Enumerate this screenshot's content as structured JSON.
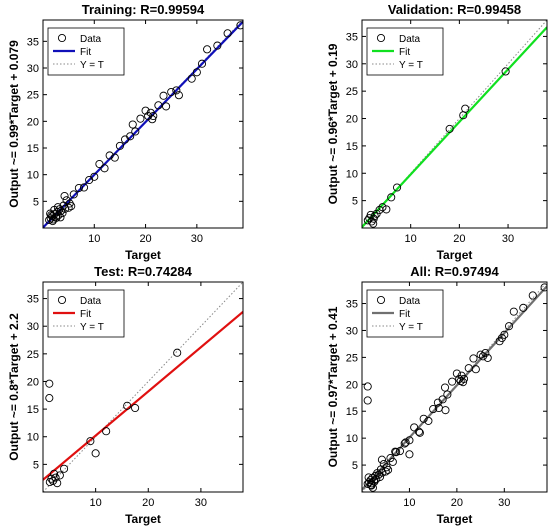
{
  "chart_data": [
    {
      "type": "scatter",
      "title": "Training: R=0.99594",
      "xlabel": "Target",
      "ylabel": "Output ~= 0.99*Target + 0.079",
      "xlim": [
        0,
        39
      ],
      "ylim": [
        0,
        39
      ],
      "xticks": [
        10,
        20,
        30
      ],
      "yticks": [
        5,
        10,
        15,
        20,
        25,
        30,
        35
      ],
      "fit_color": "#1010b8",
      "fit": {
        "slope": 0.99,
        "intercept": 0.079
      },
      "legend": {
        "placement": "top-left",
        "entries": [
          "Data",
          "Fit",
          "Y = T"
        ]
      },
      "points": [
        [
          1.2,
          1.5
        ],
        [
          1.5,
          1.8
        ],
        [
          1.8,
          2.2
        ],
        [
          2.0,
          1.6
        ],
        [
          2.2,
          2.6
        ],
        [
          2.5,
          2.1
        ],
        [
          2.8,
          3.0
        ],
        [
          3.0,
          2.4
        ],
        [
          3.2,
          3.5
        ],
        [
          1.4,
          2.7
        ],
        [
          1.9,
          1.3
        ],
        [
          2.6,
          1.9
        ],
        [
          3.5,
          3.2
        ],
        [
          3.8,
          2.8
        ],
        [
          4.0,
          4.2
        ],
        [
          4.3,
          3.6
        ],
        [
          4.6,
          5.2
        ],
        [
          5.0,
          3.8
        ],
        [
          5.5,
          4.1
        ],
        [
          2.2,
          3.4
        ],
        [
          3.4,
          2.0
        ],
        [
          1.6,
          2.4
        ],
        [
          2.9,
          3.9
        ],
        [
          4.2,
          6.0
        ],
        [
          5.2,
          4.6
        ],
        [
          6.0,
          6.3
        ],
        [
          7.0,
          7.5
        ],
        [
          8.0,
          7.6
        ],
        [
          9.0,
          9.0
        ],
        [
          10.0,
          9.6
        ],
        [
          11.0,
          12.0
        ],
        [
          12.0,
          11.2
        ],
        [
          13.0,
          13.6
        ],
        [
          14.0,
          13.2
        ],
        [
          15.0,
          15.4
        ],
        [
          16.0,
          16.6
        ],
        [
          17.0,
          17.2
        ],
        [
          17.5,
          19.4
        ],
        [
          18.0,
          18.1
        ],
        [
          19.0,
          20.5
        ],
        [
          20.0,
          22.0
        ],
        [
          20.5,
          21.0
        ],
        [
          21.0,
          21.6
        ],
        [
          21.3,
          20.4
        ],
        [
          21.5,
          21.0
        ],
        [
          22.5,
          23.0
        ],
        [
          23.5,
          24.8
        ],
        [
          24.0,
          22.8
        ],
        [
          25.0,
          25.5
        ],
        [
          26.0,
          25.8
        ],
        [
          26.5,
          24.9
        ],
        [
          29.0,
          28.0
        ],
        [
          30.0,
          29.2
        ],
        [
          31.0,
          30.8
        ],
        [
          32.0,
          33.5
        ],
        [
          34.0,
          34.2
        ],
        [
          36.0,
          36.5
        ],
        [
          38.5,
          38.0
        ]
      ]
    },
    {
      "type": "scatter",
      "title": "Validation: R=0.99458",
      "xlabel": "Target",
      "ylabel": "Output ~= 0.96*Target + 0.19",
      "xlim": [
        0,
        38
      ],
      "ylim": [
        0,
        38
      ],
      "xticks": [
        10,
        20,
        30
      ],
      "yticks": [
        5,
        10,
        15,
        20,
        25,
        30,
        35
      ],
      "fit_color": "#10e020",
      "fit": {
        "slope": 0.96,
        "intercept": 0.19
      },
      "legend": {
        "placement": "top-left",
        "entries": [
          "Data",
          "Fit",
          "Y = T"
        ]
      },
      "points": [
        [
          1.2,
          1.4
        ],
        [
          1.5,
          1.8
        ],
        [
          1.8,
          2.4
        ],
        [
          2.0,
          1.2
        ],
        [
          2.3,
          0.8
        ],
        [
          2.4,
          1.7
        ],
        [
          2.6,
          2.2
        ],
        [
          3.0,
          2.6
        ],
        [
          3.6,
          3.3
        ],
        [
          4.2,
          3.8
        ],
        [
          5.0,
          3.4
        ],
        [
          6.0,
          5.6
        ],
        [
          7.2,
          7.4
        ],
        [
          18.0,
          18.1
        ],
        [
          20.8,
          20.6
        ],
        [
          21.2,
          21.8
        ],
        [
          29.5,
          28.6
        ]
      ]
    },
    {
      "type": "scatter",
      "title": "Test: R=0.74284",
      "xlabel": "Target",
      "ylabel": "Output ~= 0.8*Target + 2.2",
      "xlim": [
        0,
        38
      ],
      "ylim": [
        0,
        38
      ],
      "xticks": [
        10,
        20,
        30
      ],
      "yticks": [
        5,
        10,
        15,
        20,
        25,
        30,
        35
      ],
      "fit_color": "#e01010",
      "fit": {
        "slope": 0.8,
        "intercept": 2.2
      },
      "legend": {
        "placement": "top-left",
        "entries": [
          "Data",
          "Fit",
          "Y = T"
        ]
      },
      "points": [
        [
          1.2,
          19.6
        ],
        [
          1.2,
          17.0
        ],
        [
          1.3,
          1.8
        ],
        [
          1.6,
          2.4
        ],
        [
          1.9,
          2.0
        ],
        [
          2.1,
          3.3
        ],
        [
          2.4,
          2.6
        ],
        [
          2.7,
          1.6
        ],
        [
          3.2,
          3.0
        ],
        [
          4.0,
          4.2
        ],
        [
          9.0,
          9.2
        ],
        [
          10.0,
          7.0
        ],
        [
          12.0,
          11.0
        ],
        [
          16.0,
          15.6
        ],
        [
          17.5,
          15.2
        ],
        [
          25.5,
          25.2
        ]
      ]
    },
    {
      "type": "scatter",
      "title": "All: R=0.97494",
      "xlabel": "Target",
      "ylabel": "Output ~= 0.97*Target + 0.41",
      "xlim": [
        0,
        39
      ],
      "ylim": [
        0,
        39
      ],
      "xticks": [
        10,
        20,
        30
      ],
      "yticks": [
        5,
        10,
        15,
        20,
        25,
        30,
        35
      ],
      "fit_color": "#707070",
      "fit": {
        "slope": 0.97,
        "intercept": 0.41
      },
      "legend": {
        "placement": "top-left",
        "entries": [
          "Data",
          "Fit",
          "Y = T"
        ]
      },
      "points": [
        [
          1.2,
          19.6
        ],
        [
          1.2,
          17.0
        ],
        [
          1.2,
          1.5
        ],
        [
          1.5,
          1.8
        ],
        [
          1.8,
          2.2
        ],
        [
          2.0,
          1.6
        ],
        [
          2.2,
          2.6
        ],
        [
          2.5,
          2.1
        ],
        [
          2.8,
          3.0
        ],
        [
          3.0,
          2.4
        ],
        [
          3.2,
          3.5
        ],
        [
          1.4,
          2.7
        ],
        [
          1.9,
          1.3
        ],
        [
          2.6,
          1.9
        ],
        [
          3.5,
          3.2
        ],
        [
          3.8,
          2.8
        ],
        [
          4.0,
          4.2
        ],
        [
          4.3,
          3.6
        ],
        [
          4.6,
          5.2
        ],
        [
          5.0,
          3.8
        ],
        [
          5.5,
          4.1
        ],
        [
          2.3,
          0.8
        ],
        [
          2.0,
          1.2
        ],
        [
          4.2,
          6.0
        ],
        [
          5.2,
          4.6
        ],
        [
          6.0,
          6.3
        ],
        [
          6.5,
          5.6
        ],
        [
          7.0,
          7.5
        ],
        [
          7.2,
          7.4
        ],
        [
          8.0,
          7.6
        ],
        [
          9.0,
          9.0
        ],
        [
          9.2,
          9.2
        ],
        [
          10.0,
          9.6
        ],
        [
          10.0,
          7.0
        ],
        [
          11.0,
          12.0
        ],
        [
          12.0,
          11.2
        ],
        [
          12.2,
          11.0
        ],
        [
          13.0,
          13.6
        ],
        [
          14.0,
          13.2
        ],
        [
          15.0,
          15.4
        ],
        [
          16.0,
          16.6
        ],
        [
          16.2,
          15.6
        ],
        [
          17.0,
          17.2
        ],
        [
          17.5,
          19.4
        ],
        [
          17.6,
          15.2
        ],
        [
          18.0,
          18.1
        ],
        [
          19.0,
          20.5
        ],
        [
          20.0,
          22.0
        ],
        [
          20.5,
          21.0
        ],
        [
          20.8,
          20.6
        ],
        [
          21.0,
          21.6
        ],
        [
          21.3,
          20.4
        ],
        [
          21.5,
          21.0
        ],
        [
          22.5,
          23.0
        ],
        [
          23.5,
          24.8
        ],
        [
          24.0,
          22.8
        ],
        [
          25.0,
          25.5
        ],
        [
          25.5,
          25.2
        ],
        [
          26.0,
          25.8
        ],
        [
          26.5,
          24.9
        ],
        [
          29.0,
          28.0
        ],
        [
          29.5,
          28.6
        ],
        [
          30.0,
          29.2
        ],
        [
          31.0,
          30.8
        ],
        [
          32.0,
          33.5
        ],
        [
          34.0,
          34.2
        ],
        [
          36.0,
          36.5
        ],
        [
          38.5,
          38.0
        ]
      ]
    }
  ]
}
